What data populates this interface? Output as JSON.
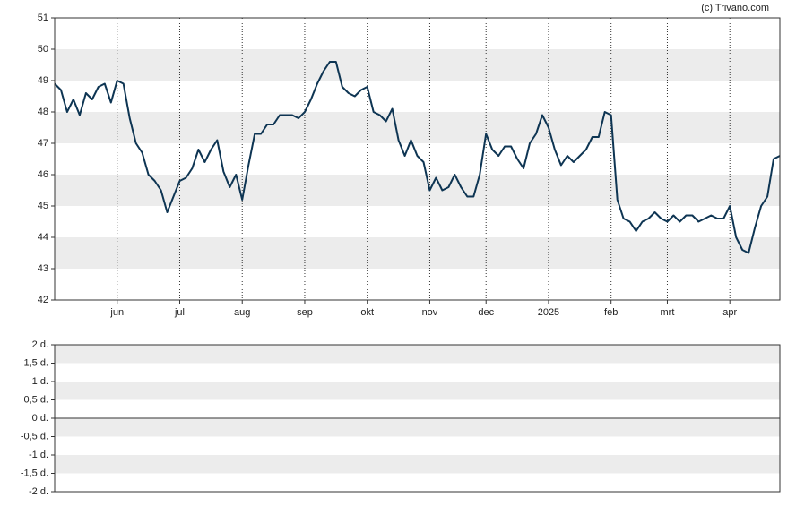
{
  "chart_data": [
    {
      "type": "line",
      "credit": "(c) Trivano.com",
      "categories": [
        null,
        null,
        null,
        null,
        null,
        null,
        null,
        null,
        null,
        null,
        "jun",
        null,
        null,
        null,
        null,
        null,
        null,
        null,
        null,
        null,
        "jul",
        null,
        null,
        null,
        null,
        null,
        null,
        null,
        null,
        null,
        "aug",
        null,
        null,
        null,
        null,
        null,
        null,
        null,
        null,
        null,
        "sep",
        null,
        null,
        null,
        null,
        null,
        null,
        null,
        null,
        null,
        "okt",
        null,
        null,
        null,
        null,
        null,
        null,
        null,
        null,
        null,
        "nov",
        null,
        null,
        null,
        null,
        null,
        null,
        null,
        null,
        "dec",
        null,
        null,
        null,
        null,
        null,
        null,
        null,
        null,
        null,
        "2025",
        null,
        null,
        null,
        null,
        null,
        null,
        null,
        null,
        null,
        "feb",
        null,
        null,
        null,
        null,
        null,
        null,
        null,
        null,
        "mrt",
        null,
        null,
        null,
        null,
        null,
        null,
        null,
        null,
        null,
        "apr",
        null,
        null,
        null,
        null,
        null,
        null,
        null,
        null
      ],
      "series": [
        {
          "color": "#0e3553",
          "values": [
            48.9,
            48.7,
            48.0,
            48.4,
            47.9,
            48.6,
            48.4,
            48.8,
            48.9,
            48.3,
            49.0,
            48.9,
            47.8,
            47.0,
            46.7,
            46.0,
            45.8,
            45.5,
            44.8,
            45.3,
            45.8,
            45.9,
            46.2,
            46.8,
            46.4,
            46.8,
            47.1,
            46.1,
            45.6,
            46.0,
            45.2,
            46.3,
            47.3,
            47.3,
            47.6,
            47.6,
            47.9,
            47.9,
            47.9,
            47.8,
            48.0,
            48.4,
            48.9,
            49.3,
            49.6,
            49.6,
            48.8,
            48.6,
            48.5,
            48.7,
            48.8,
            48.0,
            47.9,
            47.7,
            48.1,
            47.1,
            46.6,
            47.1,
            46.6,
            46.4,
            45.5,
            45.9,
            45.5,
            45.6,
            46.0,
            45.6,
            45.3,
            45.3,
            46.0,
            47.3,
            46.8,
            46.6,
            46.9,
            46.9,
            46.5,
            46.2,
            47.0,
            47.3,
            47.9,
            47.5,
            46.8,
            46.3,
            46.6,
            46.4,
            46.6,
            46.8,
            47.2,
            47.2,
            48.0,
            47.9,
            45.2,
            44.6,
            44.5,
            44.2,
            44.5,
            44.6,
            44.8,
            44.6,
            44.5,
            44.7,
            44.5,
            44.7,
            44.7,
            44.5,
            44.6,
            44.7,
            44.6,
            44.6,
            45.0,
            44.0,
            43.6,
            43.5,
            44.3,
            45.0,
            45.3,
            46.5,
            46.6
          ]
        }
      ],
      "ylim": [
        42,
        51
      ],
      "yticks": [
        42,
        43,
        44,
        45,
        46,
        47,
        48,
        49,
        50,
        51
      ],
      "bands": true
    },
    {
      "type": "bar",
      "series": [],
      "ylim": [
        -2,
        2
      ],
      "yticks": [
        {
          "value": -2,
          "label": "-2 d."
        },
        {
          "value": -1.5,
          "label": "-1,5 d."
        },
        {
          "value": -1,
          "label": "-1 d."
        },
        {
          "value": -0.5,
          "label": "-0,5 d."
        },
        {
          "value": 0,
          "label": "0 d."
        },
        {
          "value": 0.5,
          "label": "0,5 d."
        },
        {
          "value": 1,
          "label": "1 d."
        },
        {
          "value": 1.5,
          "label": "1,5 d."
        },
        {
          "value": 2,
          "label": "2 d."
        }
      ],
      "bands": true
    }
  ]
}
